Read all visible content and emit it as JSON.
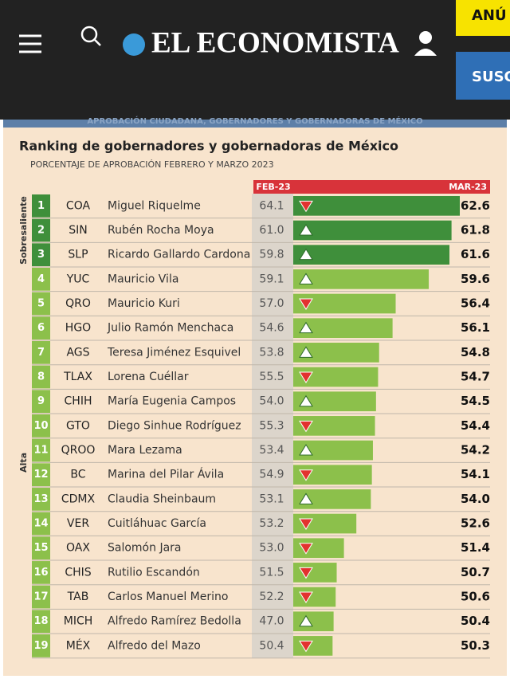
{
  "header": {
    "brand": "EL ECONOMISTA",
    "ad": "ANÚ",
    "subscribe": "SUSC"
  },
  "banner": "APROBACIÓN CIUDADANA, GOBERNADORES Y GOBERNADORAS DE MÉXICO",
  "chart_data": {
    "type": "bar",
    "title": "Ranking de gobernadores y gobernadoras de México",
    "subtitle": "PORCENTAJE DE APROBACIÓN FEBRERO Y MARZO 2023",
    "columns": [
      "FEB-23",
      "MAR-23"
    ],
    "groups": [
      {
        "label": "Sobresaliente",
        "color": "#3f8f3b",
        "count": 3
      },
      {
        "label": "Alta",
        "color": "#8cc04b",
        "count": 16
      }
    ],
    "ranks": [
      1,
      2,
      3,
      4,
      5,
      6,
      7,
      8,
      9,
      10,
      11,
      12,
      13,
      14,
      15,
      16,
      17,
      18,
      19
    ],
    "states": [
      "COA",
      "SIN",
      "SLP",
      "YUC",
      "QRO",
      "HGO",
      "AGS",
      "TLAX",
      "CHIH",
      "GTO",
      "QROO",
      "BC",
      "CDMX",
      "VER",
      "OAX",
      "CHIS",
      "TAB",
      "MICH",
      "MÉX"
    ],
    "categories": [
      "Miguel Riquelme",
      "Rubén Rocha Moya",
      "Ricardo Gallardo Cardona",
      "Mauricio Vila",
      "Mauricio Kuri",
      "Julio Ramón Menchaca",
      "Teresa Jiménez Esquivel",
      "Lorena Cuéllar",
      "María Eugenia Campos",
      "Diego Sinhue Rodríguez",
      "Mara Lezama",
      "Marina del Pilar Ávila",
      "Claudia Sheinbaum",
      "Cuitláhuac García",
      "Salomón Jara",
      "Rutilio Escandón",
      "Carlos Manuel Merino",
      "Alfredo Ramírez Bedolla",
      "Alfredo del Mazo"
    ],
    "feb": [
      64.1,
      61.0,
      59.8,
      59.1,
      57.0,
      54.6,
      53.8,
      55.5,
      54.0,
      55.3,
      53.4,
      54.9,
      53.1,
      53.2,
      53.0,
      51.5,
      52.2,
      47.0,
      50.4
    ],
    "feb_labels": [
      "64.1",
      "61.0",
      "59.8",
      "59.1",
      "57.0",
      "54.6",
      "53.8",
      "55.5",
      "54.0",
      "55.3",
      "53.4",
      "54.9",
      "53.1",
      "53.2",
      "53.0",
      "51.5",
      "52.2",
      "47.0",
      "50.4"
    ],
    "values": [
      62.6,
      61.8,
      61.6,
      59.6,
      56.4,
      56.1,
      54.8,
      54.7,
      54.5,
      54.4,
      54.2,
      54.1,
      54.0,
      52.6,
      51.4,
      50.7,
      50.6,
      50.4,
      50.3
    ],
    "value_labels": [
      "62.6",
      "61.8",
      "61.6",
      "59.6",
      "56.4",
      "56.1",
      "54.8",
      "54.7",
      "54.5",
      "54.4",
      "54.2",
      "54.1",
      "54.0",
      "52.6",
      "51.4",
      "50.7",
      "50.6",
      "50.4",
      "50.3"
    ],
    "xlim": [
      46.5,
      62.6
    ]
  }
}
